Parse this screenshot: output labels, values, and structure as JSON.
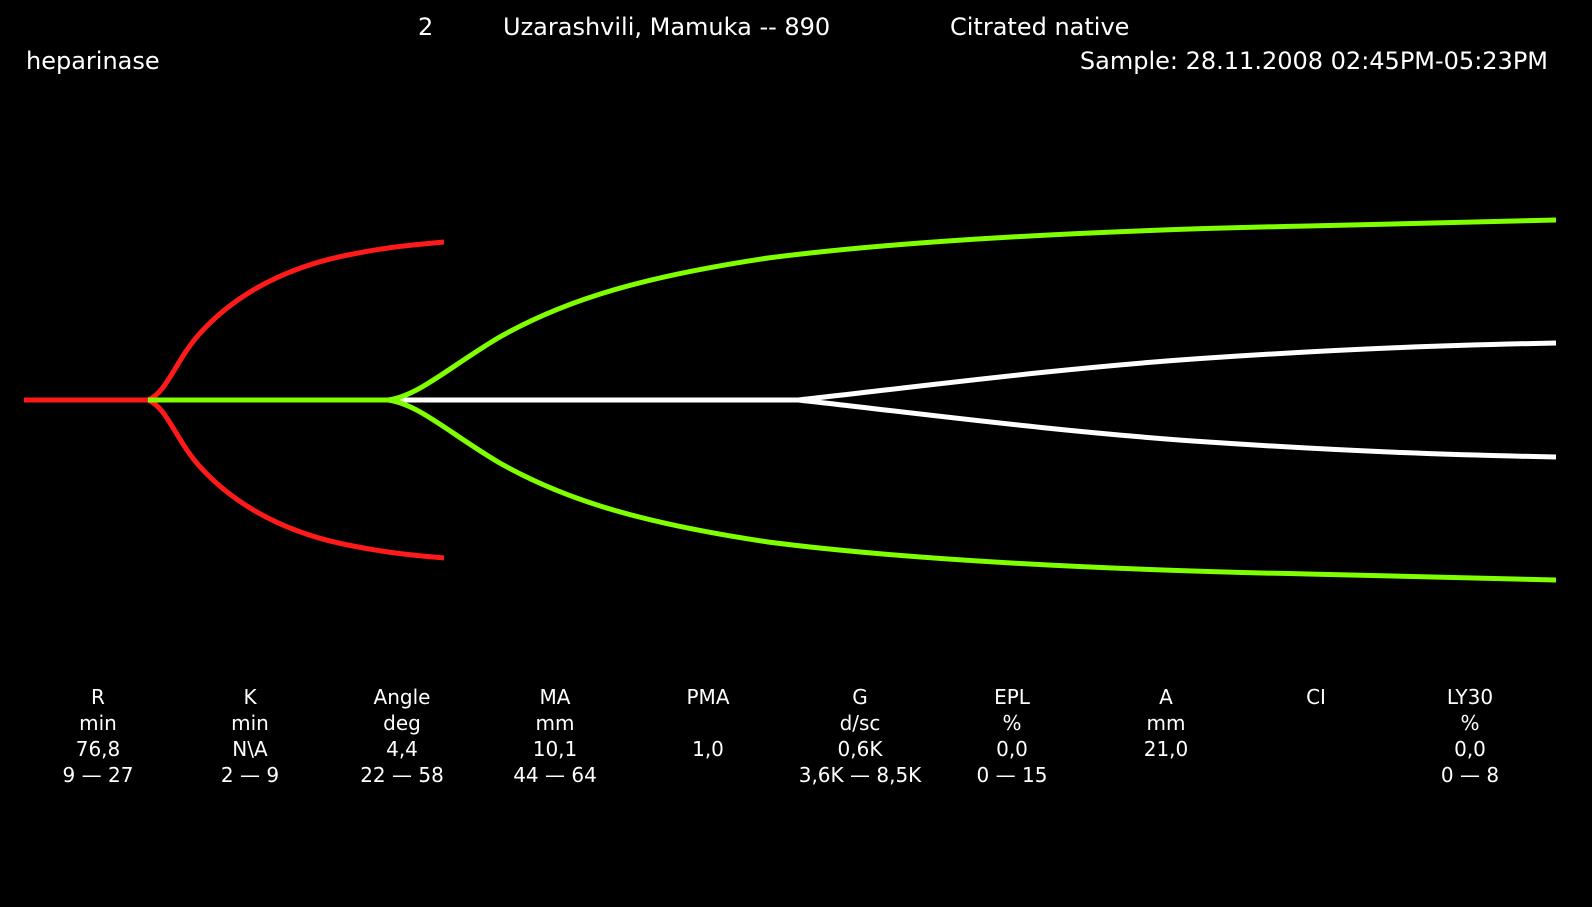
{
  "header": {
    "channel": "2",
    "patient": "Uzarashvili, Mamuka -- 890",
    "sample_type": "Citrated native",
    "reagent": "heparinase",
    "sample_time": "Sample:  28.11.2008 02:45PM-05:23PM"
  },
  "colors": {
    "background": "#000000",
    "text": "#ffffff",
    "trace_initial": "#ff1a1a",
    "trace_clot": "#7fff00",
    "trace_late": "#ffffff"
  },
  "parameters": [
    {
      "name": "R",
      "unit": "min",
      "value": "76,8",
      "range": "9 — 27"
    },
    {
      "name": "K",
      "unit": "min",
      "value": "N\\A",
      "range": "2 — 9"
    },
    {
      "name": "Angle",
      "unit": "deg",
      "value": "4,4",
      "range": "22 — 58"
    },
    {
      "name": "MA",
      "unit": "mm",
      "value": "10,1",
      "range": "44 — 64"
    },
    {
      "name": "PMA",
      "unit": "",
      "value": "1,0",
      "range": ""
    },
    {
      "name": "G",
      "unit": "d/sc",
      "value": "0,6K",
      "range": "3,6K — 8,5K"
    },
    {
      "name": "EPL",
      "unit": "%",
      "value": "0,0",
      "range": "0 — 15"
    },
    {
      "name": "A",
      "unit": "mm",
      "value": "21,0",
      "range": ""
    },
    {
      "name": "CI",
      "unit": "",
      "value": "",
      "range": ""
    },
    {
      "name": "LY30",
      "unit": "%",
      "value": "0,0",
      "range": "0 — 8"
    }
  ]
}
